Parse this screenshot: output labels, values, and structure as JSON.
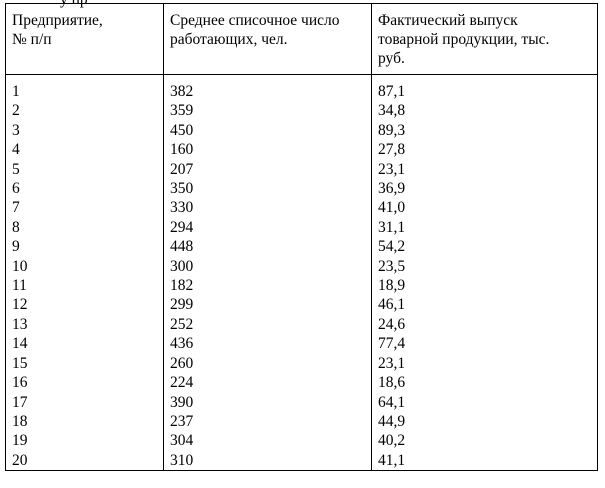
{
  "top_cut_text": "у                                     пр",
  "table": {
    "headers": [
      [
        "Предприятие,",
        "№ п/п"
      ],
      [
        "Среднее списочное число",
        "работающих, чел."
      ],
      [
        "Фактический выпуск",
        "товарной продукции, тыс.",
        "руб."
      ]
    ],
    "columns": {
      "enterprise_no": [
        "1",
        "2",
        "3",
        "4",
        "5",
        "6",
        "7",
        "8",
        "9",
        "10",
        "11",
        "12",
        "13",
        "14",
        "15",
        "16",
        "17",
        "18",
        "19",
        "20"
      ],
      "avg_employees": [
        "382",
        "359",
        "450",
        "160",
        "207",
        "350",
        "330",
        "294",
        "448",
        "300",
        "182",
        "299",
        "252",
        "436",
        "260",
        "224",
        "390",
        "237",
        "304",
        "310"
      ],
      "output": [
        "87,1",
        "34,8",
        "89,3",
        "27,8",
        "23,1",
        "36,9",
        "41,0",
        "31,1",
        "54,2",
        "23,5",
        "18,9",
        "46,1",
        "24,6",
        "77,4",
        "23,1",
        "18,6",
        "64,1",
        "44,9",
        "40,2",
        "41,1"
      ]
    }
  }
}
